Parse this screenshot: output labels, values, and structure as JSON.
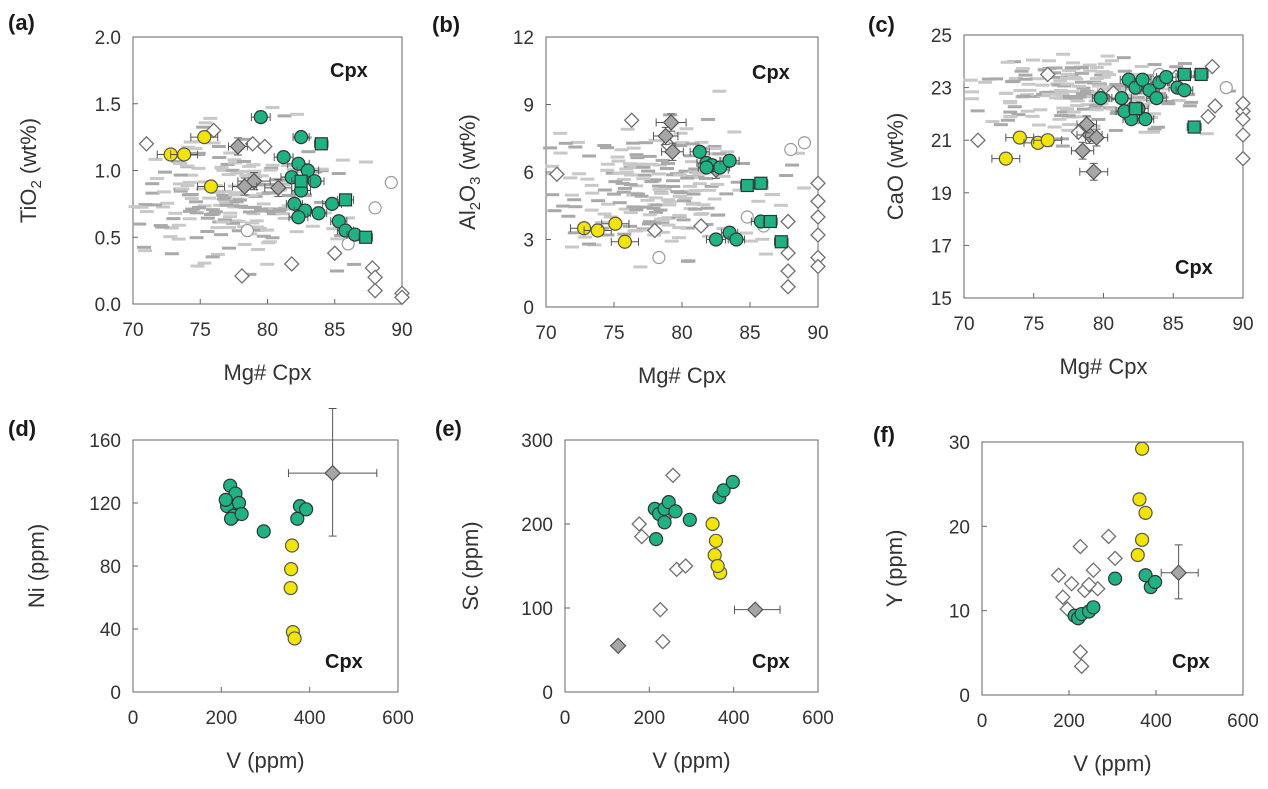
{
  "colors": {
    "yellow": "#f2e600",
    "green": "#1db384",
    "gray_diamond": "#a6a6a6",
    "open_marker": "#ffffff",
    "background_dash": "#c8c8c8",
    "background_dash_dark": "#a9a9a9"
  },
  "chart_data": [
    {
      "type": "scatter",
      "letter": "(a)",
      "tag": "Cpx",
      "xlabel": "Mg# Cpx",
      "ylabel": "TiO2 (wt%)",
      "ylabel_main": "TiO",
      "ylabel_sub": "2",
      "ylabel_rest": " (wt%)",
      "xlim": [
        70,
        90
      ],
      "ylim": [
        0,
        2
      ],
      "xticks": [
        "70",
        "75",
        "80",
        "85",
        "90"
      ],
      "xtick_values": [
        70,
        75,
        80,
        85,
        90
      ],
      "yticks": [
        "0.0",
        "0.5",
        "1.0",
        "1.5",
        "2.0"
      ],
      "ytick_values": [
        0,
        0.5,
        1,
        1.5,
        2
      ],
      "yellow": [
        [
          72.8,
          1.12,
          1
        ],
        [
          73.8,
          1.12,
          1
        ],
        [
          75.3,
          1.25,
          1
        ],
        [
          75.8,
          0.88,
          1
        ]
      ],
      "green": [
        [
          79.5,
          1.4,
          0.7
        ],
        [
          81.2,
          1.1,
          0.7
        ],
        [
          82.3,
          1.05,
          0.8
        ],
        [
          82.5,
          0.85,
          0.7
        ],
        [
          83,
          1.0,
          0.8
        ],
        [
          83.5,
          0.92,
          0.7
        ],
        [
          81.8,
          0.95,
          0.8
        ],
        [
          82,
          0.75,
          0.6
        ],
        [
          82.8,
          0.7,
          0.8
        ],
        [
          83.8,
          0.68,
          0.6
        ],
        [
          84.8,
          0.75,
          0.7
        ],
        [
          85.3,
          0.62,
          0.6
        ],
        [
          82.3,
          0.65,
          0.7
        ],
        [
          85.8,
          0.55,
          0.6
        ],
        [
          86.5,
          0.52,
          0.6
        ],
        [
          82.5,
          1.25,
          0.6
        ]
      ],
      "green_sq": [
        [
          84,
          1.2,
          0.5
        ],
        [
          82.5,
          0.92,
          0.7
        ],
        [
          85.8,
          0.78,
          0.6
        ],
        [
          87.3,
          0.5,
          0.5
        ]
      ],
      "gray_diamond": [
        [
          79,
          0.92,
          1.2
        ],
        [
          78.3,
          0.88,
          0.9
        ],
        [
          77.8,
          1.18,
          0.7
        ],
        [
          80.8,
          0.87,
          1.0
        ]
      ],
      "open_diamond": [
        [
          71,
          1.2
        ],
        [
          76,
          1.3
        ],
        [
          78.1,
          0.21
        ],
        [
          79.8,
          1.18
        ],
        [
          81.8,
          0.3
        ],
        [
          87.8,
          0.27
        ],
        [
          88,
          0.2
        ],
        [
          88,
          0.1
        ],
        [
          90,
          0.08
        ],
        [
          90,
          0.05
        ],
        [
          85,
          0.38
        ],
        [
          78.9,
          1.2
        ]
      ],
      "open_circle": [
        [
          88,
          0.72
        ],
        [
          89.2,
          0.91
        ],
        [
          78.5,
          0.55
        ],
        [
          86,
          0.45
        ]
      ],
      "dash_center": [
        78,
        0.78
      ],
      "dash_spread": [
        7.5,
        0.42
      ],
      "dash_count": 230
    },
    {
      "type": "scatter",
      "letter": "(b)",
      "tag": "Cpx",
      "xlabel": "Mg# Cpx",
      "ylabel": "Al2O3 (wt%)",
      "ylabel_main": "Al",
      "ylabel_sub": "2",
      "ylabel_rest": "O",
      "ylabel_sub2": "3",
      "ylabel_rest2": " (wt%)",
      "xlim": [
        70,
        90
      ],
      "ylim": [
        0,
        12
      ],
      "xticks": [
        "70",
        "75",
        "80",
        "85",
        "90"
      ],
      "xtick_values": [
        70,
        75,
        80,
        85,
        90
      ],
      "yticks": [
        "0",
        "3",
        "6",
        "9",
        "12"
      ],
      "ytick_values": [
        0,
        3,
        6,
        9,
        12
      ],
      "yellow": [
        [
          72.8,
          3.5,
          1
        ],
        [
          73.8,
          3.4,
          1
        ],
        [
          75.1,
          3.7,
          1
        ],
        [
          75.8,
          2.9,
          1
        ]
      ],
      "green": [
        [
          81.3,
          6.9,
          0.7
        ],
        [
          81.8,
          6.4,
          0.7
        ],
        [
          82.2,
          6.3,
          0.8
        ],
        [
          82.8,
          6.2,
          0.7
        ],
        [
          83.5,
          6.5,
          0.7
        ],
        [
          82.5,
          3.0,
          0.7
        ],
        [
          83.5,
          3.3,
          0.6
        ],
        [
          84,
          3.0,
          0.6
        ],
        [
          85.8,
          3.8,
          0.7
        ],
        [
          81.8,
          6.2,
          0.6
        ]
      ],
      "green_sq": [
        [
          84.8,
          5.4,
          0.5
        ],
        [
          85.8,
          5.5,
          0.5
        ],
        [
          86.5,
          3.8,
          0.5
        ],
        [
          87.3,
          2.9,
          0.5
        ]
      ],
      "gray_diamond": [
        [
          79.2,
          8.2,
          1.1
        ],
        [
          78.8,
          7.6,
          0.9
        ],
        [
          79.3,
          6.9,
          0.8
        ],
        [
          82.5,
          6.1,
          0.9
        ]
      ],
      "open_diamond": [
        [
          70.8,
          5.9
        ],
        [
          76.3,
          8.3
        ],
        [
          78,
          3.4
        ],
        [
          81.4,
          3.6
        ],
        [
          87.8,
          3.8
        ],
        [
          87.8,
          2.4
        ],
        [
          87.8,
          1.6
        ],
        [
          87.8,
          0.9
        ],
        [
          90,
          5.5
        ],
        [
          90,
          4.7
        ],
        [
          90,
          4.0
        ],
        [
          90,
          3.2
        ],
        [
          90,
          2.2
        ],
        [
          90,
          1.8
        ],
        [
          79,
          7.2
        ]
      ],
      "open_circle": [
        [
          88,
          7.0
        ],
        [
          89,
          7.3
        ],
        [
          78.3,
          2.2
        ],
        [
          86,
          3.6
        ],
        [
          84.8,
          4.0
        ]
      ],
      "dash_center": [
        78,
        5.2
      ],
      "dash_spread": [
        7.5,
        2.6
      ],
      "dash_count": 230
    },
    {
      "type": "scatter",
      "letter": "(c)",
      "tag": "Cpx",
      "xlabel": "Mg# Cpx",
      "ylabel": "CaO (wt%)",
      "xlim": [
        70,
        90
      ],
      "ylim": [
        15,
        25
      ],
      "xticks": [
        "70",
        "75",
        "80",
        "85",
        "90"
      ],
      "xtick_values": [
        70,
        75,
        80,
        85,
        90
      ],
      "yticks": [
        "15",
        "17",
        "19",
        "21",
        "23",
        "25"
      ],
      "ytick_values": [
        15,
        17,
        19,
        21,
        23,
        25
      ],
      "yellow": [
        [
          73,
          20.3,
          1
        ],
        [
          74,
          21.1,
          1
        ],
        [
          75.3,
          20.9,
          1
        ],
        [
          76,
          21.0,
          1
        ]
      ],
      "green": [
        [
          79.8,
          22.6,
          0.6
        ],
        [
          81.3,
          22.6,
          0.7
        ],
        [
          81.8,
          23.3,
          0.6
        ],
        [
          82.3,
          23.0,
          0.7
        ],
        [
          82.8,
          23.3,
          0.6
        ],
        [
          83.3,
          22.9,
          0.7
        ],
        [
          84,
          23.2,
          0.6
        ],
        [
          84.5,
          23.4,
          0.7
        ],
        [
          85.3,
          23.0,
          0.6
        ],
        [
          82,
          21.8,
          0.6
        ],
        [
          82.5,
          22.2,
          0.7
        ],
        [
          83,
          21.8,
          0.6
        ],
        [
          81.5,
          22.1,
          0.6
        ],
        [
          83.8,
          22.6,
          0.7
        ],
        [
          85.8,
          22.9,
          0.6
        ]
      ],
      "green_sq": [
        [
          82.3,
          22.2,
          0.5
        ],
        [
          85.8,
          23.5,
          0.5
        ],
        [
          86.5,
          21.5,
          0.5
        ],
        [
          87,
          23.5,
          0.5
        ]
      ],
      "gray_diamond": [
        [
          79.3,
          19.8,
          1.0
        ],
        [
          79,
          21.2,
          0.9
        ],
        [
          79.5,
          21.1,
          0.8
        ],
        [
          78.5,
          20.6,
          0.8
        ],
        [
          78.8,
          21.6,
          0.7
        ]
      ],
      "open_diamond": [
        [
          71,
          21.0
        ],
        [
          76,
          23.5
        ],
        [
          78.2,
          21.3
        ],
        [
          79.8,
          22.7
        ],
        [
          81.5,
          22.5
        ],
        [
          85.2,
          23.4
        ],
        [
          87.5,
          21.9
        ],
        [
          87.8,
          23.8
        ],
        [
          88,
          22.3
        ],
        [
          90,
          22.1
        ],
        [
          90,
          22.4
        ],
        [
          90,
          21.8
        ],
        [
          90,
          21.2
        ],
        [
          90,
          20.3
        ],
        [
          80.7,
          22.8
        ]
      ],
      "open_circle": [
        [
          88.8,
          23.0
        ],
        [
          84,
          23.5
        ]
      ],
      "dash_center": [
        78.5,
        22.8
      ],
      "dash_spread": [
        8,
        1.3
      ],
      "dash_count": 230
    },
    {
      "type": "scatter",
      "letter": "(d)",
      "tag": "Cpx",
      "xlabel": "V (ppm)",
      "ylabel": "Ni (ppm)",
      "xlim": [
        0,
        600
      ],
      "ylim": [
        0,
        160
      ],
      "xticks": [
        "0",
        "200",
        "400",
        "600"
      ],
      "xtick_values": [
        0,
        200,
        400,
        600
      ],
      "yticks": [
        "0",
        "40",
        "80",
        "120",
        "160"
      ],
      "ytick_values": [
        0,
        40,
        80,
        120,
        160
      ],
      "yellow": [
        [
          360,
          93,
          1
        ],
        [
          358,
          78,
          1
        ],
        [
          357,
          66,
          1
        ],
        [
          362,
          38,
          1
        ],
        [
          366,
          34,
          1
        ]
      ],
      "green": [
        [
          220,
          131,
          1
        ],
        [
          232,
          126,
          1
        ],
        [
          213,
          118,
          1
        ],
        [
          228,
          112,
          1
        ],
        [
          240,
          120,
          1
        ],
        [
          222,
          110,
          1
        ],
        [
          246,
          113,
          1
        ],
        [
          296,
          102,
          1
        ],
        [
          372,
          110,
          1
        ],
        [
          378,
          118,
          1
        ],
        [
          392,
          116,
          1
        ],
        [
          210,
          122,
          1
        ]
      ],
      "green_sq": [],
      "gray_diamond": [
        [
          452,
          139,
          1
        ]
      ],
      "error_x": [
        [
          352,
          552,
          139
        ]
      ],
      "error_y": [
        [
          452,
          99,
          180
        ]
      ],
      "open_diamond": [],
      "open_circle": [],
      "dash_count": 0
    },
    {
      "type": "scatter",
      "letter": "(e)",
      "tag": "Cpx",
      "xlabel": "V (ppm)",
      "ylabel": "Sc (ppm)",
      "xlim": [
        0,
        600
      ],
      "ylim": [
        0,
        300
      ],
      "xticks": [
        "0",
        "200",
        "400",
        "600"
      ],
      "xtick_values": [
        0,
        200,
        400,
        600
      ],
      "yticks": [
        "0",
        "100",
        "200",
        "300"
      ],
      "ytick_values": [
        0,
        100,
        200,
        300
      ],
      "yellow": [
        [
          350,
          200,
          1
        ],
        [
          358,
          180,
          1
        ],
        [
          355,
          163,
          1
        ],
        [
          368,
          142,
          1
        ],
        [
          362,
          150,
          1
        ]
      ],
      "green": [
        [
          213,
          218,
          1
        ],
        [
          223,
          212,
          1
        ],
        [
          236,
          218,
          1
        ],
        [
          246,
          226,
          1
        ],
        [
          216,
          182,
          1
        ],
        [
          236,
          202,
          1
        ],
        [
          296,
          205,
          1
        ],
        [
          366,
          232,
          1
        ],
        [
          376,
          240,
          1
        ],
        [
          398,
          250,
          1
        ],
        [
          262,
          215,
          1
        ]
      ],
      "green_sq": [],
      "gray_diamond": [
        [
          126,
          55,
          1
        ],
        [
          451,
          98,
          1
        ]
      ],
      "error_x": [
        [
          402,
          510,
          98
        ]
      ],
      "error_y": [],
      "open_diamond": [
        [
          256,
          258
        ],
        [
          176,
          200
        ],
        [
          182,
          185
        ],
        [
          265,
          146
        ],
        [
          286,
          150
        ],
        [
          226,
          98
        ],
        [
          232,
          60
        ],
        [
          236,
          207
        ]
      ],
      "open_circle": [],
      "dash_count": 0
    },
    {
      "type": "scatter",
      "letter": "(f)",
      "tag": "Cpx",
      "xlabel": "V (ppm)",
      "ylabel": "Y (ppm)",
      "xlim": [
        0,
        600
      ],
      "ylim": [
        0,
        30
      ],
      "xticks": [
        "0",
        "200",
        "400",
        "600"
      ],
      "xtick_values": [
        0,
        200,
        400,
        600
      ],
      "yticks": [
        "0",
        "10",
        "20",
        "30"
      ],
      "ytick_values": [
        0,
        10,
        20,
        30
      ],
      "yellow": [
        [
          368,
          29.2,
          1
        ],
        [
          362,
          23.2,
          1
        ],
        [
          376,
          21.6,
          1
        ],
        [
          368,
          18.4,
          1
        ],
        [
          358,
          16.6,
          1
        ]
      ],
      "green": [
        [
          213,
          9.4,
          1
        ],
        [
          221,
          9.1,
          1
        ],
        [
          229,
          9.6,
          1
        ],
        [
          246,
          9.9,
          1
        ],
        [
          256,
          10.4,
          1
        ],
        [
          306,
          13.8,
          1
        ],
        [
          376,
          14.2,
          1
        ],
        [
          388,
          12.8,
          1
        ],
        [
          398,
          13.4,
          1
        ]
      ],
      "green_sq": [],
      "gray_diamond": [
        [
          452,
          14.5,
          1
        ]
      ],
      "error_x": [
        [
          412,
          497,
          14.5
        ]
      ],
      "error_y": [
        [
          452,
          11.4,
          17.8
        ]
      ],
      "open_diamond": [
        [
          176,
          14.2
        ],
        [
          186,
          11.6
        ],
        [
          206,
          13.2
        ],
        [
          226,
          17.6
        ],
        [
          236,
          12.4
        ],
        [
          256,
          14.8
        ],
        [
          266,
          12.6
        ],
        [
          291,
          18.8
        ],
        [
          306,
          16.2
        ],
        [
          226,
          5.1
        ],
        [
          229,
          3.4
        ],
        [
          246,
          13.1
        ],
        [
          196,
          10.2
        ]
      ],
      "open_circle": [],
      "dash_count": 0
    }
  ]
}
